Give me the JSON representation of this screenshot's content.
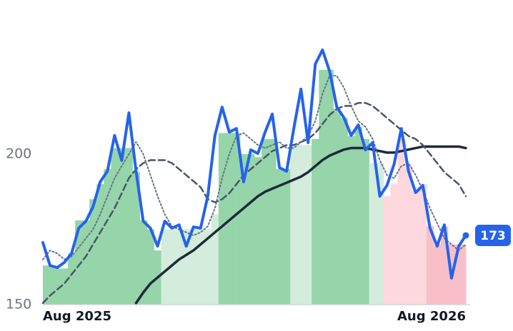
{
  "chart_data": {
    "type": "line",
    "categories": [
      "Aug 2025",
      null,
      null,
      null,
      null,
      null,
      null,
      null,
      null,
      null,
      null,
      null,
      null,
      null,
      null,
      null,
      null,
      null,
      null,
      null,
      null,
      null,
      null,
      null,
      null,
      null,
      null,
      null,
      null,
      null,
      null,
      null,
      null,
      null,
      null,
      null,
      null,
      null,
      null,
      null,
      null,
      null,
      null,
      null,
      null,
      null,
      null,
      null,
      null,
      null,
      null,
      null,
      null,
      null,
      null,
      null,
      null,
      null,
      null,
      "Aug 2026"
    ],
    "ylim": [
      150,
      245
    ],
    "yticks": [
      150,
      200
    ],
    "background": {
      "values": [
        163,
        163,
        162,
        162,
        167,
        178,
        178,
        185,
        190,
        195,
        202,
        202,
        202,
        194,
        178,
        175,
        168,
        175,
        175,
        175,
        175,
        175,
        175,
        175,
        180,
        207,
        207,
        207,
        200,
        200,
        199,
        205,
        205,
        195,
        195,
        203,
        203,
        203,
        205,
        228,
        228,
        215,
        212,
        206,
        209,
        205,
        197,
        197,
        186,
        190,
        205,
        196,
        188,
        190,
        176,
        170,
        176,
        170,
        170,
        170
      ],
      "colors": [
        "#95d5a9",
        "#95d5a9",
        "#95d5a9",
        "#95d5a9",
        "#95d5a9",
        "#95d5a9",
        "#95d5a9",
        "#95d5a9",
        "#95d5a9",
        "#95d5a9",
        "#95d5a9",
        "#95d5a9",
        "#95d5a9",
        "#95d5a9",
        "#95d5a9",
        "#95d5a9",
        "#95d5a9",
        "#d3ecdb",
        "#d3ecdb",
        "#d3ecdb",
        "#d3ecdb",
        "#d3ecdb",
        "#d3ecdb",
        "#d3ecdb",
        "#d3ecdb",
        "#95d5a9",
        "#95d5a9",
        "#95d5a9",
        "#95d5a9",
        "#95d5a9",
        "#95d5a9",
        "#95d5a9",
        "#95d5a9",
        "#95d5a9",
        "#95d5a9",
        "#d3ecdb",
        "#d3ecdb",
        "#d3ecdb",
        "#95d5a9",
        "#95d5a9",
        "#95d5a9",
        "#95d5a9",
        "#95d5a9",
        "#95d5a9",
        "#95d5a9",
        "#95d5a9",
        "#d3ecdb",
        "#d3ecdb",
        "#fdd8de",
        "#fdd8de",
        "#fdd8de",
        "#fdd8de",
        "#fdd8de",
        "#fdd8de",
        "#f9bfc9",
        "#f9bfc9",
        "#f9bfc9",
        "#f9bfc9",
        "#f9bfc9",
        "#f9bfc9"
      ]
    },
    "series": [
      {
        "color": "#2563eb",
        "style": "solid",
        "width": 4,
        "values": [
          170.6,
          163,
          162.3,
          164,
          167,
          175.4,
          177.7,
          182.5,
          190.8,
          194.3,
          206.2,
          197.9,
          213.7,
          194.3,
          177.7,
          175.4,
          169.4,
          177.7,
          175.4,
          176.5,
          169.4,
          175.8,
          175.4,
          186,
          206.2,
          215.6,
          207.3,
          208.5,
          190.8,
          201.4,
          200.2,
          207.3,
          213.3,
          195.5,
          194.3,
          208.5,
          221.6,
          203.8,
          229.9,
          234.6,
          227.5,
          215.6,
          212.1,
          206.2,
          209.7,
          201.4,
          203.8,
          186,
          189.6,
          196.7,
          208.5,
          194.3,
          187.2,
          189.6,
          175.4,
          169.4,
          176.5,
          158.8,
          169.4,
          173
        ]
      },
      {
        "color": "#64748b",
        "style": "dotted",
        "width": 2,
        "values": [
          165,
          168,
          167,
          165,
          166,
          169,
          172,
          175,
          180,
          186,
          192,
          196,
          200,
          204,
          200,
          193,
          186,
          180,
          176,
          175,
          174,
          173,
          174,
          176,
          182,
          192,
          200,
          206,
          207,
          205,
          203,
          202,
          203,
          204,
          202,
          202,
          204,
          206,
          211,
          220,
          226,
          226,
          222,
          216,
          211,
          209,
          205,
          198,
          193,
          192,
          196,
          197,
          193,
          188,
          182,
          177,
          172,
          170,
          168,
          170
        ]
      },
      {
        "color": "#475569",
        "style": "dashed",
        "width": 2.5,
        "values": [
          150.5,
          153,
          155,
          157,
          160,
          163,
          166,
          170,
          174,
          178,
          182,
          187,
          192,
          195,
          197,
          198,
          198,
          198,
          197,
          195,
          193,
          191,
          189,
          185,
          184,
          185,
          187,
          190,
          193,
          195,
          197,
          199,
          201,
          202,
          203,
          203,
          204,
          205,
          207,
          210,
          213,
          215,
          216,
          216,
          217,
          217,
          216,
          214,
          212,
          210,
          208,
          206,
          205,
          203,
          200,
          197,
          194,
          192,
          190,
          186
        ]
      },
      {
        "color": "#1e293b",
        "style": "solid",
        "width": 3.5,
        "values": [
          null,
          null,
          null,
          null,
          null,
          null,
          null,
          null,
          null,
          null,
          null,
          null,
          null,
          150.5,
          154,
          157,
          159,
          161,
          163,
          165,
          166.5,
          168,
          170,
          172,
          174,
          176,
          178,
          180,
          182,
          184,
          186,
          187.5,
          188.5,
          189.5,
          190.5,
          191.5,
          192.5,
          194,
          196,
          198,
          199.5,
          200.5,
          201.5,
          202,
          202,
          202,
          201.5,
          201,
          200.5,
          200.5,
          201,
          201.5,
          202,
          202.5,
          202.5,
          202.5,
          202.5,
          202.5,
          202.5,
          202
        ]
      }
    ]
  }
}
